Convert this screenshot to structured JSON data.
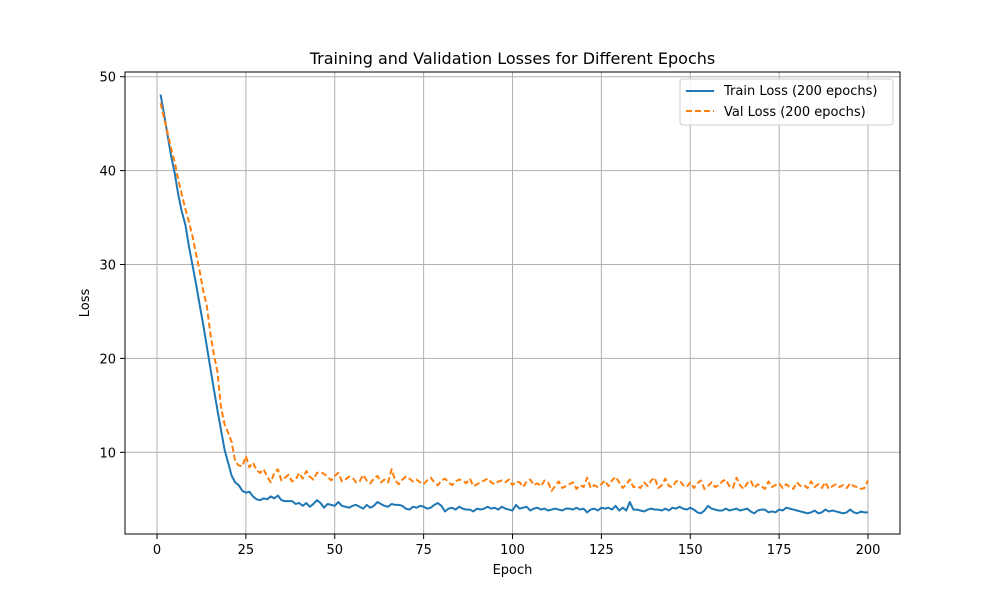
{
  "chart_data": {
    "type": "line",
    "title": "Training and Validation Losses for Different Epochs",
    "xlabel": "Epoch",
    "ylabel": "Loss",
    "xlim": [
      -9,
      209
    ],
    "ylim": [
      1.3,
      50.5
    ],
    "xticks": [
      0,
      25,
      50,
      75,
      100,
      125,
      150,
      175,
      200
    ],
    "yticks": [
      10,
      20,
      30,
      40,
      50
    ],
    "grid": true,
    "legend_position": "top-right",
    "x_start": 1,
    "series": [
      {
        "name": "Train Loss (200 epochs)",
        "color": "#1f77b4",
        "dash": "solid",
        "values": [
          48.1,
          46.0,
          43.7,
          41.5,
          39.7,
          37.4,
          35.6,
          34.2,
          31.9,
          29.9,
          27.9,
          25.7,
          23.6,
          21.3,
          19.0,
          16.7,
          14.5,
          12.4,
          10.3,
          8.9,
          7.5,
          6.8,
          6.5,
          5.9,
          5.7,
          5.8,
          5.3,
          5.0,
          4.9,
          5.1,
          5.0,
          5.3,
          5.1,
          5.4,
          4.9,
          4.8,
          4.8,
          4.8,
          4.5,
          4.6,
          4.3,
          4.6,
          4.2,
          4.5,
          4.9,
          4.6,
          4.1,
          4.5,
          4.4,
          4.3,
          4.7,
          4.3,
          4.2,
          4.1,
          4.3,
          4.4,
          4.2,
          4.0,
          4.4,
          4.1,
          4.3,
          4.7,
          4.5,
          4.3,
          4.2,
          4.5,
          4.4,
          4.4,
          4.3,
          4.0,
          3.9,
          4.2,
          4.1,
          4.3,
          4.2,
          4.0,
          4.1,
          4.4,
          4.6,
          4.3,
          3.7,
          4.0,
          4.1,
          3.9,
          4.2,
          4.0,
          3.9,
          3.9,
          3.7,
          4.0,
          3.9,
          4.0,
          4.2,
          4.0,
          4.1,
          3.9,
          4.2,
          4.0,
          3.9,
          3.8,
          4.4,
          4.0,
          4.1,
          4.2,
          3.8,
          4.0,
          4.1,
          3.9,
          4.0,
          3.8,
          3.9,
          4.0,
          3.9,
          3.8,
          4.0,
          4.0,
          3.9,
          4.1,
          3.9,
          4.0,
          3.6,
          3.9,
          4.0,
          3.8,
          4.1,
          4.0,
          4.1,
          3.9,
          4.3,
          3.8,
          4.1,
          3.8,
          4.7,
          3.9,
          3.9,
          3.8,
          3.7,
          3.9,
          4.0,
          3.9,
          3.9,
          3.8,
          4.0,
          3.8,
          4.1,
          4.0,
          4.2,
          4.0,
          3.9,
          4.1,
          3.9,
          3.6,
          3.5,
          3.8,
          4.3,
          4.0,
          3.9,
          3.8,
          3.8,
          4.0,
          3.8,
          3.9,
          4.0,
          3.8,
          3.9,
          4.0,
          3.7,
          3.5,
          3.8,
          3.9,
          3.9,
          3.6,
          3.7,
          3.6,
          3.9,
          3.8,
          4.1,
          4.0,
          3.9,
          3.8,
          3.7,
          3.6,
          3.5,
          3.6,
          3.8,
          3.5,
          3.6,
          3.9,
          3.7,
          3.8,
          3.7,
          3.6,
          3.5,
          3.6,
          3.9,
          3.6,
          3.5,
          3.7,
          3.6,
          3.6
        ]
      },
      {
        "name": "Val Loss (200 epochs)",
        "color": "#ff7f0e",
        "dash": "dashed",
        "values": [
          47.2,
          45.6,
          44.0,
          42.3,
          40.9,
          39.0,
          37.4,
          35.9,
          34.5,
          33.0,
          31.1,
          29.3,
          27.2,
          25.6,
          22.7,
          20.4,
          18.6,
          14.8,
          13.0,
          12.1,
          11.1,
          9.0,
          8.6,
          8.5,
          9.6,
          8.4,
          8.9,
          8.1,
          7.8,
          8.2,
          7.4,
          6.8,
          7.8,
          8.2,
          7.0,
          7.3,
          7.6,
          6.9,
          7.1,
          7.8,
          7.2,
          8.0,
          7.4,
          7.1,
          7.8,
          7.9,
          7.7,
          7.4,
          7.0,
          7.5,
          7.8,
          6.9,
          7.1,
          7.4,
          7.3,
          6.8,
          6.9,
          7.6,
          7.0,
          6.7,
          7.2,
          7.5,
          6.8,
          7.1,
          6.8,
          8.2,
          7.0,
          6.6,
          7.1,
          7.4,
          7.2,
          6.9,
          7.1,
          6.8,
          6.6,
          7.0,
          7.3,
          6.8,
          6.5,
          7.0,
          7.2,
          6.8,
          6.5,
          6.9,
          7.1,
          7.0,
          6.7,
          7.2,
          6.4,
          6.6,
          6.8,
          7.0,
          7.2,
          6.8,
          6.6,
          6.9,
          7.0,
          6.8,
          7.1,
          6.5,
          6.9,
          6.8,
          6.3,
          6.9,
          7.1,
          6.5,
          6.7,
          6.4,
          7.0,
          6.8,
          5.9,
          6.4,
          6.9,
          6.2,
          6.4,
          6.6,
          6.8,
          6.1,
          6.5,
          6.3,
          7.3,
          6.2,
          6.5,
          6.3,
          6.6,
          7.0,
          6.4,
          7.0,
          7.4,
          6.8,
          6.2,
          6.6,
          7.1,
          6.3,
          6.4,
          6.2,
          6.8,
          6.4,
          7.0,
          7.3,
          6.2,
          6.5,
          7.2,
          6.4,
          6.3,
          6.9,
          7.0,
          6.5,
          6.3,
          6.8,
          6.2,
          6.7,
          7.0,
          6.1,
          6.4,
          6.8,
          6.3,
          6.5,
          6.9,
          7.1,
          6.4,
          6.2,
          7.3,
          6.5,
          6.1,
          6.7,
          7.0,
          6.2,
          6.6,
          6.4,
          6.1,
          6.9,
          6.3,
          6.5,
          6.7,
          6.2,
          6.6,
          6.3,
          6.1,
          6.8,
          6.4,
          6.5,
          6.2,
          6.9,
          6.3,
          6.6,
          6.2,
          6.8,
          6.1,
          6.4,
          6.6,
          6.3,
          6.5,
          6.2,
          6.7,
          6.4,
          6.3,
          6.1,
          6.2,
          7.0
        ]
      }
    ]
  }
}
